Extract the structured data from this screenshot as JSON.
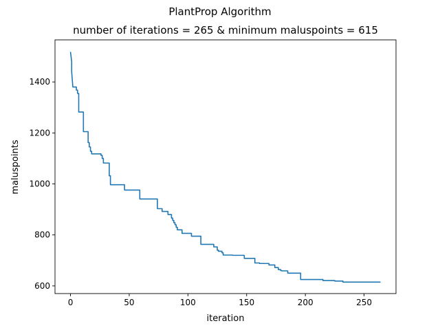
{
  "chart_data": {
    "type": "line",
    "suptitle": "PlantProp Algorithm",
    "title": "number of iterations = 265 & minimum maluspoints = 615",
    "xlabel": "iteration",
    "ylabel": "maluspoints",
    "xlim": [
      -13.2,
      277.2
    ],
    "ylim": [
      570,
      1565
    ],
    "xticks": [
      0,
      50,
      100,
      150,
      200,
      250
    ],
    "yticks": [
      600,
      800,
      1000,
      1200,
      1400
    ],
    "grid": false,
    "line_color": "#1f77b4",
    "series": [
      {
        "name": "",
        "x": [
          0,
          1,
          1,
          2,
          2,
          5,
          5,
          6,
          6,
          7,
          7,
          8,
          8,
          11,
          11,
          12,
          12,
          15,
          15,
          16,
          16,
          17,
          17,
          18,
          18,
          26,
          26,
          27,
          27,
          28,
          28,
          29,
          29,
          33,
          33,
          34,
          34,
          36,
          36,
          46,
          46,
          59,
          59,
          74,
          74,
          78,
          78,
          83,
          83,
          86,
          86,
          87,
          87,
          88,
          88,
          89,
          89,
          90,
          90,
          91,
          91,
          95,
          95,
          103,
          103,
          111,
          111,
          122,
          122,
          125,
          125,
          126,
          126,
          129,
          129,
          130,
          130,
          136,
          136,
          138,
          138,
          148,
          148,
          157,
          157,
          161,
          161,
          169,
          169,
          174,
          174,
          177,
          177,
          179,
          179,
          180,
          180,
          185,
          185,
          196,
          196,
          215,
          215,
          225,
          225,
          232,
          232,
          264
        ],
        "y": [
          1518,
          1480,
          1440,
          1380,
          1380,
          1380,
          1368,
          1368,
          1355,
          1355,
          1282,
          1282,
          1282,
          1282,
          1205,
          1205,
          1205,
          1205,
          1162,
          1162,
          1145,
          1145,
          1128,
          1128,
          1118,
          1118,
          1112,
          1112,
          1100,
          1100,
          1082,
          1082,
          1082,
          1082,
          1032,
          1032,
          997,
          997,
          997,
          997,
          976,
          976,
          941,
          941,
          903,
          903,
          892,
          892,
          880,
          880,
          866,
          866,
          857,
          857,
          848,
          848,
          840,
          840,
          830,
          830,
          820,
          820,
          806,
          806,
          795,
          795,
          763,
          763,
          753,
          753,
          740,
          740,
          736,
          736,
          730,
          730,
          721,
          721,
          721,
          721,
          720,
          720,
          708,
          708,
          690,
          690,
          688,
          688,
          682,
          682,
          672,
          672,
          664,
          664,
          660,
          660,
          659,
          659,
          650,
          650,
          625,
          625,
          621,
          621,
          619,
          619,
          615,
          615
        ]
      }
    ]
  }
}
